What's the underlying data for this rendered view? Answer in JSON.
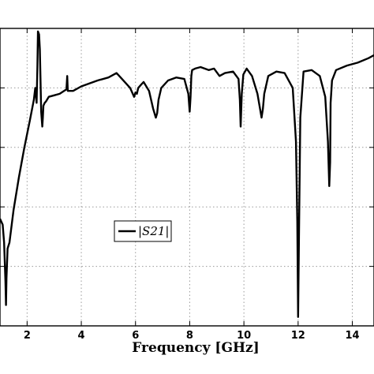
{
  "chart_data": {
    "type": "line",
    "title": "",
    "xlabel": "Frequency [GHz]",
    "ylabel": "",
    "xlim": [
      1.0,
      14.8
    ],
    "ylim": [
      -100,
      0
    ],
    "grid": true,
    "legend_position": "center-left",
    "x_ticks": [
      "2",
      "4",
      "6",
      "8",
      "10",
      "12",
      "14"
    ],
    "series": [
      {
        "name": "|S21|",
        "x": [
          1.0,
          1.1,
          1.15,
          1.2,
          1.22,
          1.24,
          1.28,
          1.35,
          1.5,
          1.7,
          1.9,
          2.1,
          2.25,
          2.3,
          2.35,
          2.38,
          2.4,
          2.44,
          2.47,
          2.52,
          2.56,
          2.58,
          2.6,
          2.65,
          2.7,
          2.8,
          3.0,
          3.2,
          3.45,
          3.48,
          3.5,
          3.55,
          3.7,
          4.0,
          4.3,
          4.6,
          5.0,
          5.3,
          5.5,
          5.8,
          5.95,
          6.0,
          6.05,
          6.1,
          6.2,
          6.3,
          6.5,
          6.65,
          6.75,
          6.8,
          6.85,
          6.95,
          7.2,
          7.5,
          7.8,
          7.95,
          8.0,
          8.03,
          8.06,
          8.09,
          8.2,
          8.4,
          8.7,
          8.9,
          9.1,
          9.3,
          9.6,
          9.8,
          9.85,
          9.88,
          9.92,
          9.98,
          10.1,
          10.3,
          10.5,
          10.65,
          10.7,
          10.75,
          10.9,
          11.2,
          11.5,
          11.8,
          11.92,
          11.97,
          12.0,
          12.03,
          12.08,
          12.2,
          12.5,
          12.8,
          13.0,
          13.1,
          13.15,
          13.18,
          13.2,
          13.25,
          13.4,
          13.8,
          14.2,
          14.6,
          14.8
        ],
        "values": [
          -64,
          -66,
          -72,
          -85,
          -93,
          -84,
          -74,
          -72,
          -61,
          -50,
          -40,
          -31,
          -24,
          -20,
          -25,
          -13,
          -1,
          -2,
          -7,
          -28,
          -33,
          -30,
          -26,
          -25,
          -24.5,
          -23,
          -22.5,
          -22,
          -20.5,
          -16,
          -21,
          -21,
          -21,
          -19.5,
          -18.5,
          -17.5,
          -16.5,
          -15,
          -17,
          -20,
          -23,
          -21.5,
          -22,
          -20,
          -19,
          -18,
          -21,
          -27,
          -30,
          -28.5,
          -24,
          -20,
          -17.5,
          -16.5,
          -17,
          -22,
          -28,
          -23,
          -16,
          -14,
          -13.5,
          -13,
          -14,
          -13.5,
          -16,
          -15,
          -14.5,
          -17,
          -24,
          -33,
          -22,
          -15.5,
          -13.5,
          -16,
          -22,
          -30,
          -27,
          -22,
          -16,
          -14.5,
          -15,
          -20,
          -38,
          -65,
          -97,
          -70,
          -30,
          -14.5,
          -14,
          -16,
          -23,
          -38,
          -53,
          -45,
          -25,
          -17.5,
          -14,
          -12.5,
          -11.5,
          -10,
          -9
        ]
      }
    ]
  }
}
